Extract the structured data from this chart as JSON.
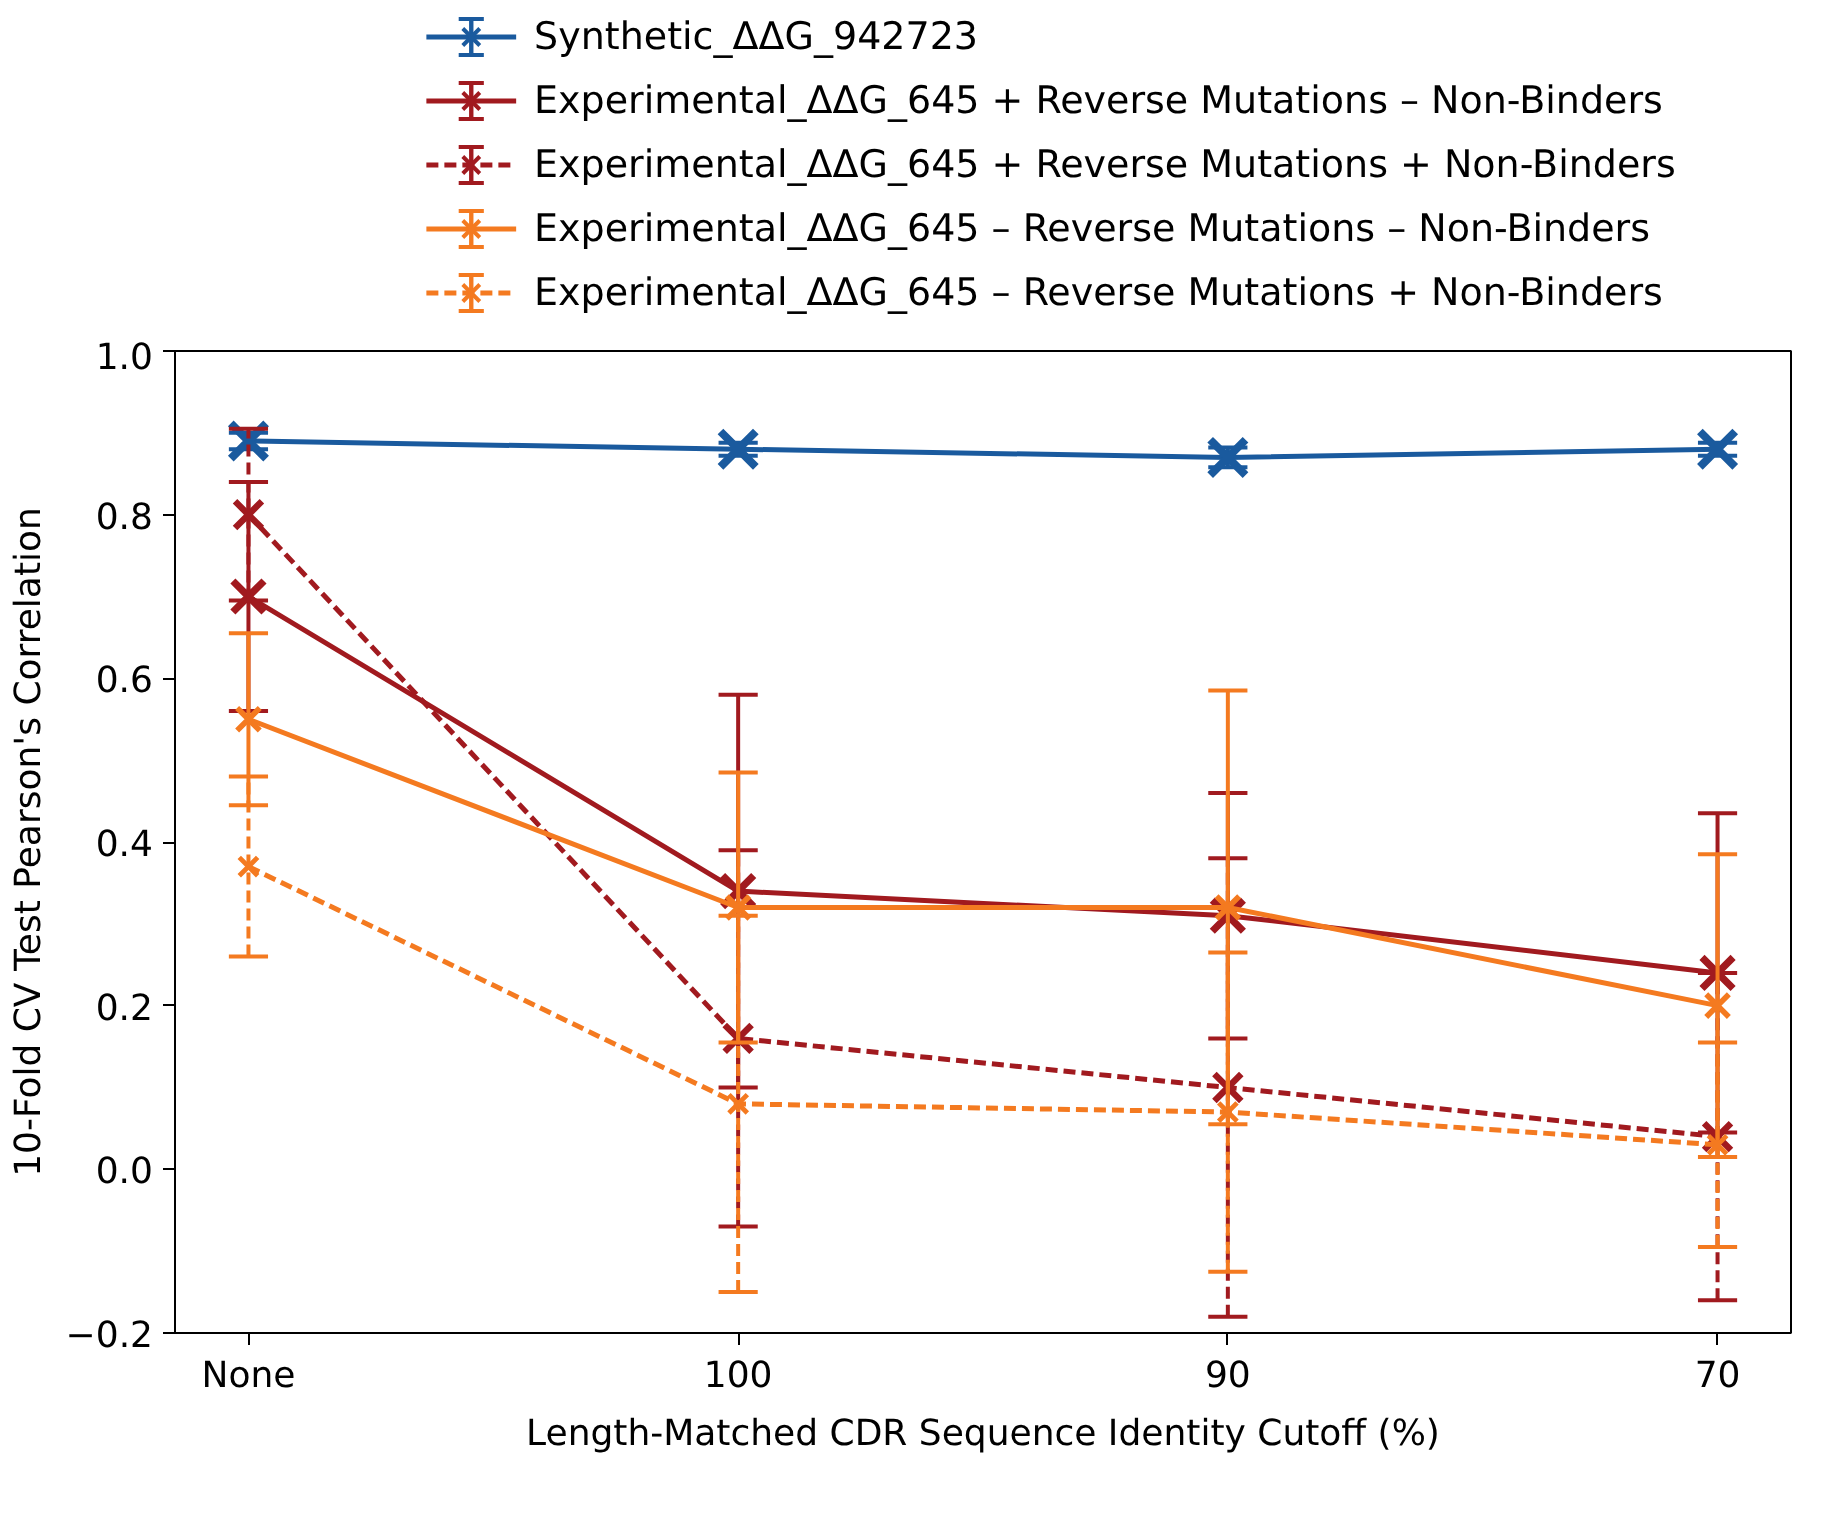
{
  "chart_data": {
    "type": "line",
    "xlabel": "Length-Matched CDR Sequence Identity Cutoff (%)",
    "ylabel": "10-Fold CV Test Pearson's Correlation",
    "categories": [
      "None",
      "100",
      "90",
      "70"
    ],
    "ylim": [
      -0.2,
      1.0
    ],
    "yticks": [
      {
        "value": -0.2,
        "label": "−0.2"
      },
      {
        "value": 0,
        "label": "0.0"
      },
      0.2,
      0.4,
      0.6,
      0.8,
      {
        "value": 1,
        "label": "1.0"
      }
    ],
    "grid": false,
    "legend": "top",
    "marker": "cross",
    "series": [
      {
        "name": "Synthetic_ΔΔG_942723",
        "color": "#1a5a9e",
        "line_style": "solid",
        "values": [
          0.89,
          0.88,
          0.87,
          0.88
        ],
        "errors": [
          0.01,
          0.008,
          0.012,
          0.008
        ]
      },
      {
        "name": "Experimental_ΔΔG_645 + Reverse Mutations – Non-Binders",
        "color": "#a11a1f",
        "line_style": "solid",
        "values": [
          0.7,
          0.34,
          0.31,
          0.24
        ],
        "errors": [
          0.14,
          0.24,
          0.15,
          0.195
        ]
      },
      {
        "name": "Experimental_ΔΔG_645 + Reverse Mutations + Non-Binders",
        "color": "#a11a1f",
        "line_style": "dashed",
        "values": [
          0.8,
          0.16,
          0.1,
          0.04
        ],
        "errors": [
          0.105,
          0.23,
          0.28,
          0.2
        ]
      },
      {
        "name": "Experimental_ΔΔG_645 – Reverse Mutations – Non-Binders",
        "color": "#f47a20",
        "line_style": "solid",
        "values": [
          0.55,
          0.32,
          0.32,
          0.2
        ],
        "errors": [
          0.105,
          0.165,
          0.265,
          0.185
        ]
      },
      {
        "name": "Experimental_ΔΔG_645 – Reverse Mutations + Non-Binders",
        "color": "#f47a20",
        "line_style": "dashed",
        "values": [
          0.37,
          0.08,
          0.07,
          0.03
        ],
        "errors": [
          0.11,
          0.23,
          0.195,
          0.125
        ]
      }
    ]
  }
}
